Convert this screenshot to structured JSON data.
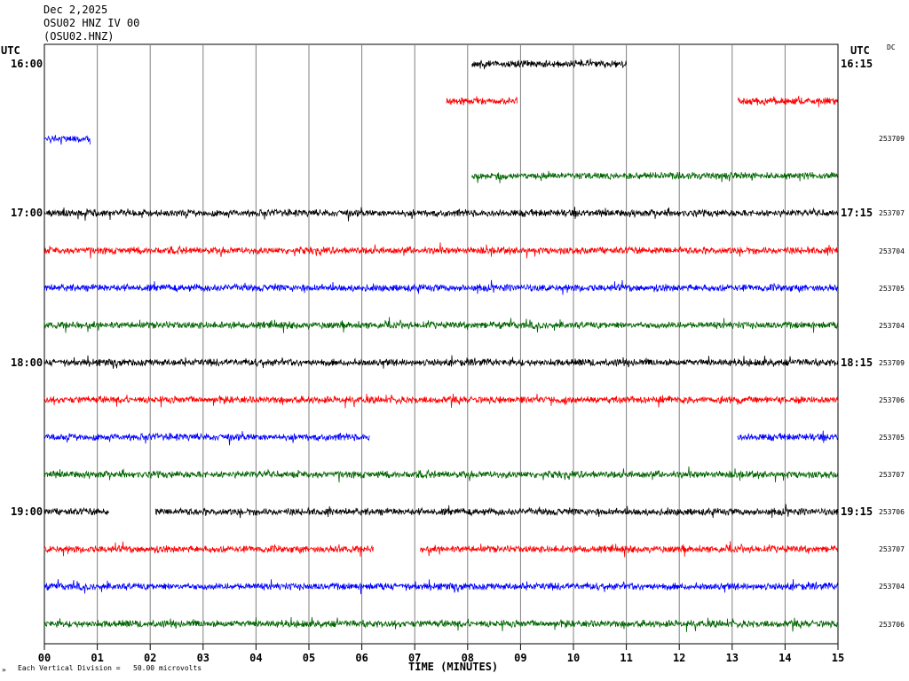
{
  "header": {
    "date": "Dec 2,2025",
    "station": "OSU02 HNZ IV 00",
    "code": "(OSU02.HNZ)"
  },
  "left_utc": "UTC",
  "right_utc": "UTC",
  "dc": "DC",
  "footer_mark": "»",
  "footer_note": "Each Vertical Division =   50.00 microvolts",
  "colors": {
    "black": "#000000",
    "red": "#ff0000",
    "blue": "#0000ff",
    "green": "#006400",
    "grid": "#808080"
  },
  "chart_data": {
    "type": "line",
    "title": "OSU02 HNZ IV 00",
    "xlabel": "TIME (MINUTES)",
    "ylabel": "",
    "xlim": [
      0,
      15
    ],
    "x_ticks": [
      "00",
      "01",
      "02",
      "03",
      "04",
      "05",
      "06",
      "07",
      "08",
      "09",
      "10",
      "11",
      "12",
      "13",
      "14",
      "15"
    ],
    "trace_interval_minutes": 3.75,
    "row_labels": [
      {
        "row": 0,
        "left": "16:00",
        "right": "16:15"
      },
      {
        "row": 4,
        "left": "17:00",
        "right": "17:15"
      },
      {
        "row": 8,
        "left": "18:00",
        "right": "18:15"
      },
      {
        "row": 12,
        "left": "19:00",
        "right": "19:15"
      }
    ],
    "traces": [
      {
        "row": 0,
        "color": "black",
        "segments": [
          [
            8.08,
            11.0
          ]
        ],
        "dc": ""
      },
      {
        "row": 1,
        "color": "red",
        "segments": [
          [
            7.6,
            8.95
          ],
          [
            13.1,
            15.0
          ]
        ],
        "dc": ""
      },
      {
        "row": 2,
        "color": "blue",
        "segments": [
          [
            0.0,
            0.87
          ]
        ],
        "dc": "253709"
      },
      {
        "row": 3,
        "color": "green",
        "segments": [
          [
            8.08,
            15.0
          ]
        ],
        "dc": ""
      },
      {
        "row": 4,
        "color": "black",
        "segments": [
          [
            0.0,
            15.0
          ]
        ],
        "dc": "253707"
      },
      {
        "row": 5,
        "color": "red",
        "segments": [
          [
            0.0,
            15.0
          ]
        ],
        "dc": "253704"
      },
      {
        "row": 6,
        "color": "blue",
        "segments": [
          [
            0.0,
            15.0
          ]
        ],
        "dc": "253705"
      },
      {
        "row": 7,
        "color": "green",
        "segments": [
          [
            0.0,
            15.0
          ]
        ],
        "dc": "253704"
      },
      {
        "row": 8,
        "color": "black",
        "segments": [
          [
            0.0,
            15.0
          ]
        ],
        "dc": "253709"
      },
      {
        "row": 9,
        "color": "red",
        "segments": [
          [
            0.0,
            15.0
          ]
        ],
        "dc": "253706"
      },
      {
        "row": 10,
        "color": "blue",
        "segments": [
          [
            0.0,
            6.15
          ],
          [
            13.1,
            15.0
          ]
        ],
        "dc": "253705"
      },
      {
        "row": 11,
        "color": "green",
        "segments": [
          [
            0.0,
            15.0
          ]
        ],
        "dc": "253707"
      },
      {
        "row": 12,
        "color": "black",
        "segments": [
          [
            0.0,
            1.23
          ],
          [
            2.1,
            15.0
          ]
        ],
        "dc": "253706"
      },
      {
        "row": 13,
        "color": "red",
        "segments": [
          [
            0.0,
            6.22
          ],
          [
            7.1,
            15.0
          ]
        ],
        "dc": "253707"
      },
      {
        "row": 14,
        "color": "blue",
        "segments": [
          [
            0.0,
            15.0
          ]
        ],
        "dc": "253704"
      },
      {
        "row": 15,
        "color": "green",
        "segments": [
          [
            0.0,
            15.0
          ]
        ],
        "dc": "253706"
      }
    ]
  }
}
